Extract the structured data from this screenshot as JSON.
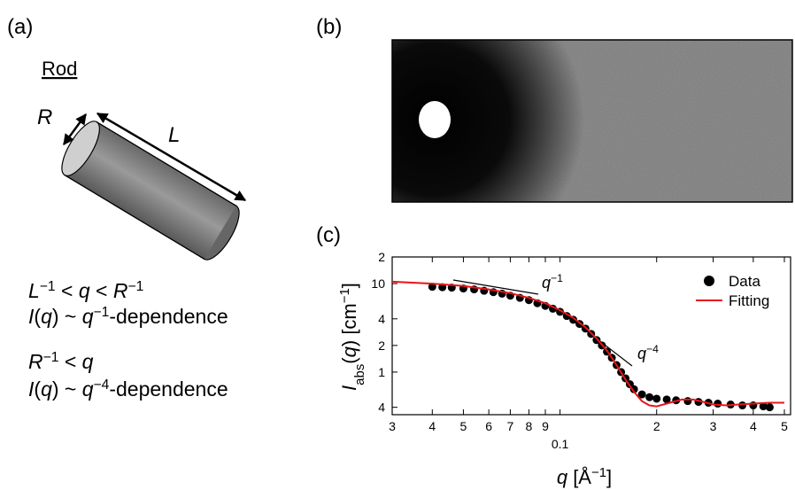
{
  "panel_a": {
    "label": "(a)",
    "title": "Rod",
    "dim_r": "R",
    "dim_l": "L",
    "lines": [
      [
        {
          "t": "L",
          "it": true
        },
        {
          "t": "−1",
          "sup": true
        },
        {
          "t": " < "
        },
        {
          "t": "q",
          "it": true
        },
        {
          "t": " < "
        },
        {
          "t": "R",
          "it": true
        },
        {
          "t": "−1",
          "sup": true
        }
      ],
      [
        {
          "t": "I",
          "it": true
        },
        {
          "t": "("
        },
        {
          "t": "q",
          "it": true
        },
        {
          "t": ") ~ "
        },
        {
          "t": "q",
          "it": true
        },
        {
          "t": "−1",
          "sup": true
        },
        {
          "t": "-dependence"
        }
      ],
      [
        {
          "t": "R",
          "it": true
        },
        {
          "t": "−1",
          "sup": true
        },
        {
          "t": " < "
        },
        {
          "t": "q",
          "it": true
        }
      ],
      [
        {
          "t": "I",
          "it": true
        },
        {
          "t": "("
        },
        {
          "t": "q",
          "it": true
        },
        {
          "t": ") ~ "
        },
        {
          "t": "q",
          "it": true
        },
        {
          "t": "−4",
          "sup": true
        },
        {
          "t": "-dependence"
        }
      ]
    ]
  },
  "panel_b": {
    "label": "(b)"
  },
  "chart_data": {
    "type": "scatter",
    "panel_label": "(c)",
    "x_label": [
      {
        "t": "q",
        "it": true
      },
      {
        "t": " [Å"
      },
      {
        "t": "−1",
        "sup": true
      },
      {
        "t": "]"
      }
    ],
    "y_label": [
      {
        "t": "I",
        "it": true
      },
      {
        "t": "abs",
        "sub": true
      },
      {
        "t": "("
      },
      {
        "t": "q",
        "it": true
      },
      {
        "t": ") [cm"
      },
      {
        "t": "−1",
        "sup": true
      },
      {
        "t": "]"
      }
    ],
    "annotations": [
      [
        {
          "t": "q",
          "it": true
        },
        {
          "t": "−1",
          "sup": true
        }
      ],
      [
        {
          "t": "q",
          "it": true
        },
        {
          "t": "−4",
          "sup": true
        }
      ]
    ],
    "xlog": true,
    "ylog": true,
    "xlim": [
      0.03,
      0.5
    ],
    "ylim": [
      0.33,
      20
    ],
    "xticks": [
      {
        "value": 0.03,
        "label": "3"
      },
      {
        "value": 0.04,
        "label": "4"
      },
      {
        "value": 0.05,
        "label": "5"
      },
      {
        "value": 0.06,
        "label": "6"
      },
      {
        "value": 0.07,
        "label": "7"
      },
      {
        "value": 0.08,
        "label": "8"
      },
      {
        "value": 0.09,
        "label": "9"
      },
      0.1,
      {
        "value": 0.2,
        "label": "2"
      },
      {
        "value": 0.3,
        "label": "3"
      },
      {
        "value": 0.4,
        "label": "4"
      },
      {
        "value": 0.5,
        "label": "5"
      }
    ],
    "yticks": [
      {
        "value": 0.4,
        "label": "4"
      },
      1,
      {
        "value": 2,
        "label": "2"
      },
      {
        "value": 4,
        "label": "4"
      },
      10,
      {
        "value": 20,
        "label": "2"
      }
    ],
    "legend": "upper right",
    "series": [
      {
        "name": "Data",
        "color": "#000000",
        "style": "points",
        "x": [
          0.04,
          0.043,
          0.046,
          0.05,
          0.054,
          0.058,
          0.062,
          0.066,
          0.07,
          0.075,
          0.08,
          0.085,
          0.09,
          0.095,
          0.1,
          0.105,
          0.11,
          0.115,
          0.12,
          0.125,
          0.13,
          0.135,
          0.14,
          0.145,
          0.15,
          0.155,
          0.16,
          0.165,
          0.17,
          0.18,
          0.19,
          0.2,
          0.215,
          0.23,
          0.25,
          0.27,
          0.29,
          0.31,
          0.34,
          0.37,
          0.4,
          0.43,
          0.45
        ],
        "values": [
          9.2,
          9.1,
          9.0,
          8.8,
          8.6,
          8.3,
          8.0,
          7.7,
          7.3,
          6.9,
          6.5,
          6.0,
          5.6,
          5.2,
          4.8,
          4.3,
          3.9,
          3.5,
          3.1,
          2.7,
          2.3,
          2.0,
          1.7,
          1.45,
          1.2,
          1.0,
          0.85,
          0.73,
          0.64,
          0.56,
          0.52,
          0.5,
          0.49,
          0.48,
          0.47,
          0.46,
          0.45,
          0.44,
          0.43,
          0.42,
          0.42,
          0.41,
          0.4
        ]
      },
      {
        "name": "Fitting",
        "color": "#e8141c",
        "style": "line",
        "x": [
          0.03,
          0.04,
          0.05,
          0.06,
          0.07,
          0.08,
          0.09,
          0.1,
          0.11,
          0.12,
          0.13,
          0.14,
          0.15,
          0.16,
          0.17,
          0.18,
          0.19,
          0.2,
          0.22,
          0.24,
          0.26,
          0.28,
          0.3,
          0.33,
          0.36,
          0.4,
          0.45,
          0.5
        ],
        "values": [
          10.5,
          10.0,
          9.4,
          8.6,
          7.8,
          6.9,
          6.0,
          5.0,
          4.1,
          3.2,
          2.4,
          1.75,
          1.2,
          0.82,
          0.6,
          0.47,
          0.42,
          0.41,
          0.45,
          0.49,
          0.49,
          0.46,
          0.43,
          0.42,
          0.43,
          0.44,
          0.45,
          0.45
        ]
      }
    ]
  }
}
